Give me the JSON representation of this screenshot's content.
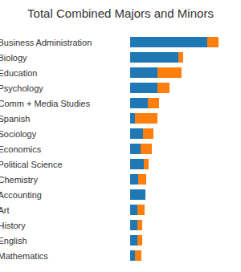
{
  "chart_data": {
    "type": "bar",
    "title": "Total Combined Majors and Minors",
    "orientation": "horizontal",
    "stacked": true,
    "tick_labels": "y",
    "categories": [
      "Business Administration",
      "Biology",
      "Education",
      "Psychology",
      "Comm + Media Studies",
      "Spanish",
      "Sociology",
      "Economics",
      "Political Science",
      "Chemistry",
      "Accounting",
      "Art",
      "History",
      "English",
      "Mathematics"
    ],
    "series": [
      {
        "color": "#1f77b4",
        "values": [
          96,
          60,
          34,
          34,
          22,
          6,
          16,
          13,
          17,
          10,
          19,
          9,
          9,
          9,
          6
        ]
      },
      {
        "color": "#ff7f0e",
        "values": [
          14,
          6,
          30,
          15,
          14,
          28,
          13,
          14,
          6,
          10,
          0,
          9,
          6,
          6,
          8
        ]
      }
    ]
  }
}
